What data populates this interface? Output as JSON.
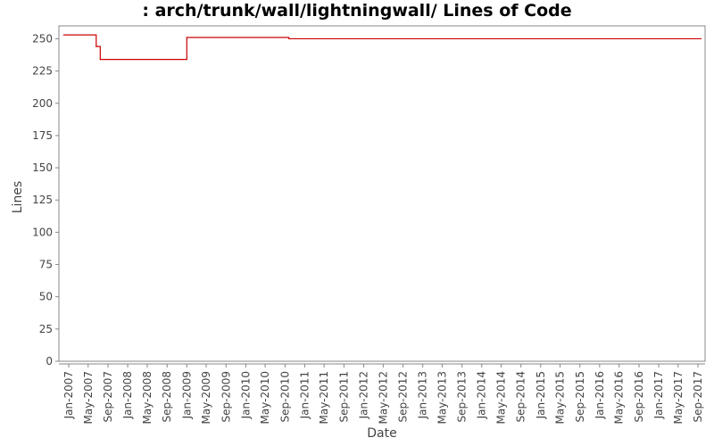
{
  "chart_data": {
    "type": "line",
    "title": ": arch/trunk/wall/lightningwall/ Lines of Code",
    "xlabel": "Date",
    "ylabel": "Lines",
    "ylim": [
      0,
      260
    ],
    "xlim": [
      "2006-11-01",
      "2017-10-15"
    ],
    "y_ticks": [
      0,
      25,
      50,
      75,
      100,
      125,
      150,
      175,
      200,
      225,
      250
    ],
    "x_ticks": [
      {
        "date": "2007-01-01",
        "label": "Jan-2007"
      },
      {
        "date": "2007-05-01",
        "label": "May-2007"
      },
      {
        "date": "2007-09-01",
        "label": "Sep-2007"
      },
      {
        "date": "2008-01-01",
        "label": "Jan-2008"
      },
      {
        "date": "2008-05-01",
        "label": "May-2008"
      },
      {
        "date": "2008-09-01",
        "label": "Sep-2008"
      },
      {
        "date": "2009-01-01",
        "label": "Jan-2009"
      },
      {
        "date": "2009-05-01",
        "label": "May-2009"
      },
      {
        "date": "2009-09-01",
        "label": "Sep-2009"
      },
      {
        "date": "2010-01-01",
        "label": "Jan-2010"
      },
      {
        "date": "2010-05-01",
        "label": "May-2010"
      },
      {
        "date": "2010-09-01",
        "label": "Sep-2010"
      },
      {
        "date": "2011-01-01",
        "label": "Jan-2011"
      },
      {
        "date": "2011-05-01",
        "label": "May-2011"
      },
      {
        "date": "2011-09-01",
        "label": "Sep-2011"
      },
      {
        "date": "2012-01-01",
        "label": "Jan-2012"
      },
      {
        "date": "2012-05-01",
        "label": "May-2012"
      },
      {
        "date": "2012-09-01",
        "label": "Sep-2012"
      },
      {
        "date": "2013-01-01",
        "label": "Jan-2013"
      },
      {
        "date": "2013-05-01",
        "label": "May-2013"
      },
      {
        "date": "2013-09-01",
        "label": "Sep-2013"
      },
      {
        "date": "2014-01-01",
        "label": "Jan-2014"
      },
      {
        "date": "2014-05-01",
        "label": "May-2014"
      },
      {
        "date": "2014-09-01",
        "label": "Sep-2014"
      },
      {
        "date": "2015-01-01",
        "label": "Jan-2015"
      },
      {
        "date": "2015-05-01",
        "label": "May-2015"
      },
      {
        "date": "2015-09-01",
        "label": "Sep-2015"
      },
      {
        "date": "2016-01-01",
        "label": "Jan-2016"
      },
      {
        "date": "2016-05-01",
        "label": "May-2016"
      },
      {
        "date": "2016-09-01",
        "label": "Sep-2016"
      },
      {
        "date": "2017-01-01",
        "label": "Jan-2017"
      },
      {
        "date": "2017-05-01",
        "label": "May-2017"
      },
      {
        "date": "2017-09-01",
        "label": "Sep-2017"
      }
    ],
    "line_color": "#cc0000",
    "step": true,
    "grid": false,
    "series": [
      {
        "points": [
          {
            "x": "2006-12-01",
            "y": 253
          },
          {
            "x": "2007-06-20",
            "y": 244
          },
          {
            "x": "2007-07-15",
            "y": 234
          },
          {
            "x": "2009-01-01",
            "y": 251
          },
          {
            "x": "2010-09-25",
            "y": 250
          },
          {
            "x": "2017-09-20",
            "y": 250
          }
        ]
      }
    ]
  }
}
